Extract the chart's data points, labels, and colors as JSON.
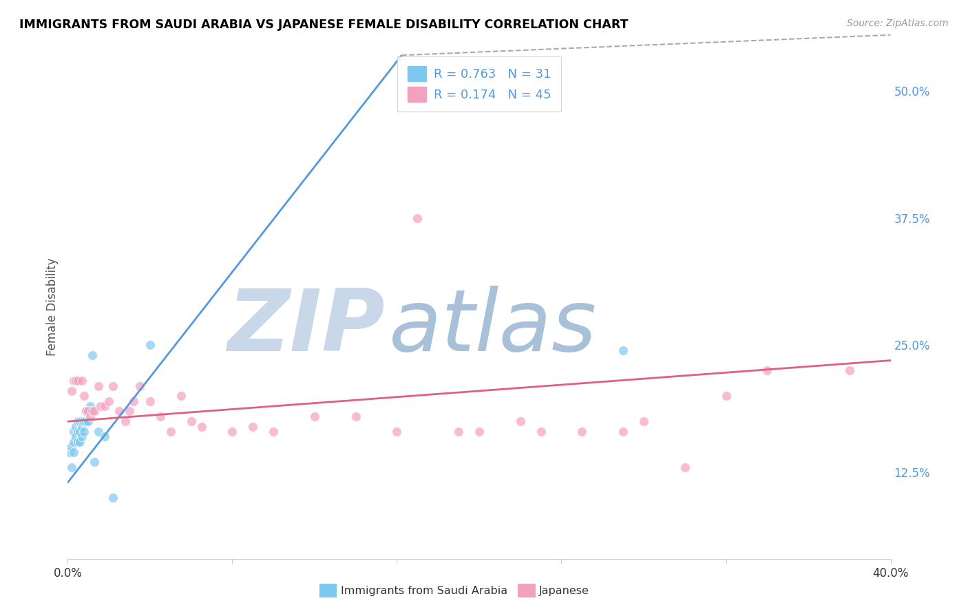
{
  "title": "IMMIGRANTS FROM SAUDI ARABIA VS JAPANESE FEMALE DISABILITY CORRELATION CHART",
  "source": "Source: ZipAtlas.com",
  "ylabel": "Female Disability",
  "xlim": [
    0.0,
    0.4
  ],
  "ylim": [
    0.04,
    0.535
  ],
  "xtick_positions": [
    0.0,
    0.08,
    0.16,
    0.24,
    0.32,
    0.4
  ],
  "xtick_labels": [
    "0.0%",
    "",
    "",
    "",
    "",
    "40.0%"
  ],
  "ytick_vals_right": [
    0.125,
    0.25,
    0.375,
    0.5
  ],
  "ytick_labels_right": [
    "12.5%",
    "25.0%",
    "37.5%",
    "50.0%"
  ],
  "legend_r1": "R = 0.763",
  "legend_n1": "N = 31",
  "legend_r2": "R = 0.174",
  "legend_n2": "N = 45",
  "legend_label1": "Immigrants from Saudi Arabia",
  "legend_label2": "Japanese",
  "color_blue": "#7ec8f0",
  "color_pink": "#f4a0c0",
  "color_blue_line": "#5599dd",
  "color_pink_line": "#e06080",
  "watermark_zip": "#c8d8e8",
  "watermark_atlas": "#a8c0d8",
  "scatter_blue_x": [
    0.001,
    0.002,
    0.002,
    0.003,
    0.003,
    0.003,
    0.004,
    0.004,
    0.005,
    0.005,
    0.005,
    0.006,
    0.006,
    0.006,
    0.007,
    0.007,
    0.007,
    0.008,
    0.008,
    0.009,
    0.009,
    0.01,
    0.01,
    0.011,
    0.012,
    0.013,
    0.015,
    0.018,
    0.022,
    0.04,
    0.27
  ],
  "scatter_blue_y": [
    0.145,
    0.13,
    0.15,
    0.145,
    0.155,
    0.165,
    0.16,
    0.17,
    0.155,
    0.165,
    0.175,
    0.155,
    0.165,
    0.175,
    0.16,
    0.17,
    0.175,
    0.165,
    0.175,
    0.175,
    0.185,
    0.175,
    0.185,
    0.19,
    0.24,
    0.135,
    0.165,
    0.16,
    0.1,
    0.25,
    0.245
  ],
  "scatter_pink_x": [
    0.002,
    0.003,
    0.004,
    0.005,
    0.007,
    0.008,
    0.009,
    0.01,
    0.011,
    0.012,
    0.013,
    0.015,
    0.016,
    0.018,
    0.02,
    0.022,
    0.025,
    0.028,
    0.03,
    0.032,
    0.035,
    0.04,
    0.045,
    0.05,
    0.055,
    0.06,
    0.065,
    0.08,
    0.09,
    0.1,
    0.12,
    0.14,
    0.16,
    0.17,
    0.19,
    0.2,
    0.22,
    0.23,
    0.25,
    0.27,
    0.28,
    0.3,
    0.32,
    0.34,
    0.38
  ],
  "scatter_pink_y": [
    0.205,
    0.215,
    0.215,
    0.215,
    0.215,
    0.2,
    0.185,
    0.185,
    0.18,
    0.185,
    0.185,
    0.21,
    0.19,
    0.19,
    0.195,
    0.21,
    0.185,
    0.175,
    0.185,
    0.195,
    0.21,
    0.195,
    0.18,
    0.165,
    0.2,
    0.175,
    0.17,
    0.165,
    0.17,
    0.165,
    0.18,
    0.18,
    0.165,
    0.375,
    0.165,
    0.165,
    0.175,
    0.165,
    0.165,
    0.165,
    0.175,
    0.13,
    0.2,
    0.225,
    0.225
  ],
  "blue_line_x": [
    0.0,
    0.4
  ],
  "blue_line_y": [
    0.115,
    1.15
  ],
  "pink_line_x": [
    0.0,
    0.4
  ],
  "pink_line_y": [
    0.175,
    0.235
  ]
}
